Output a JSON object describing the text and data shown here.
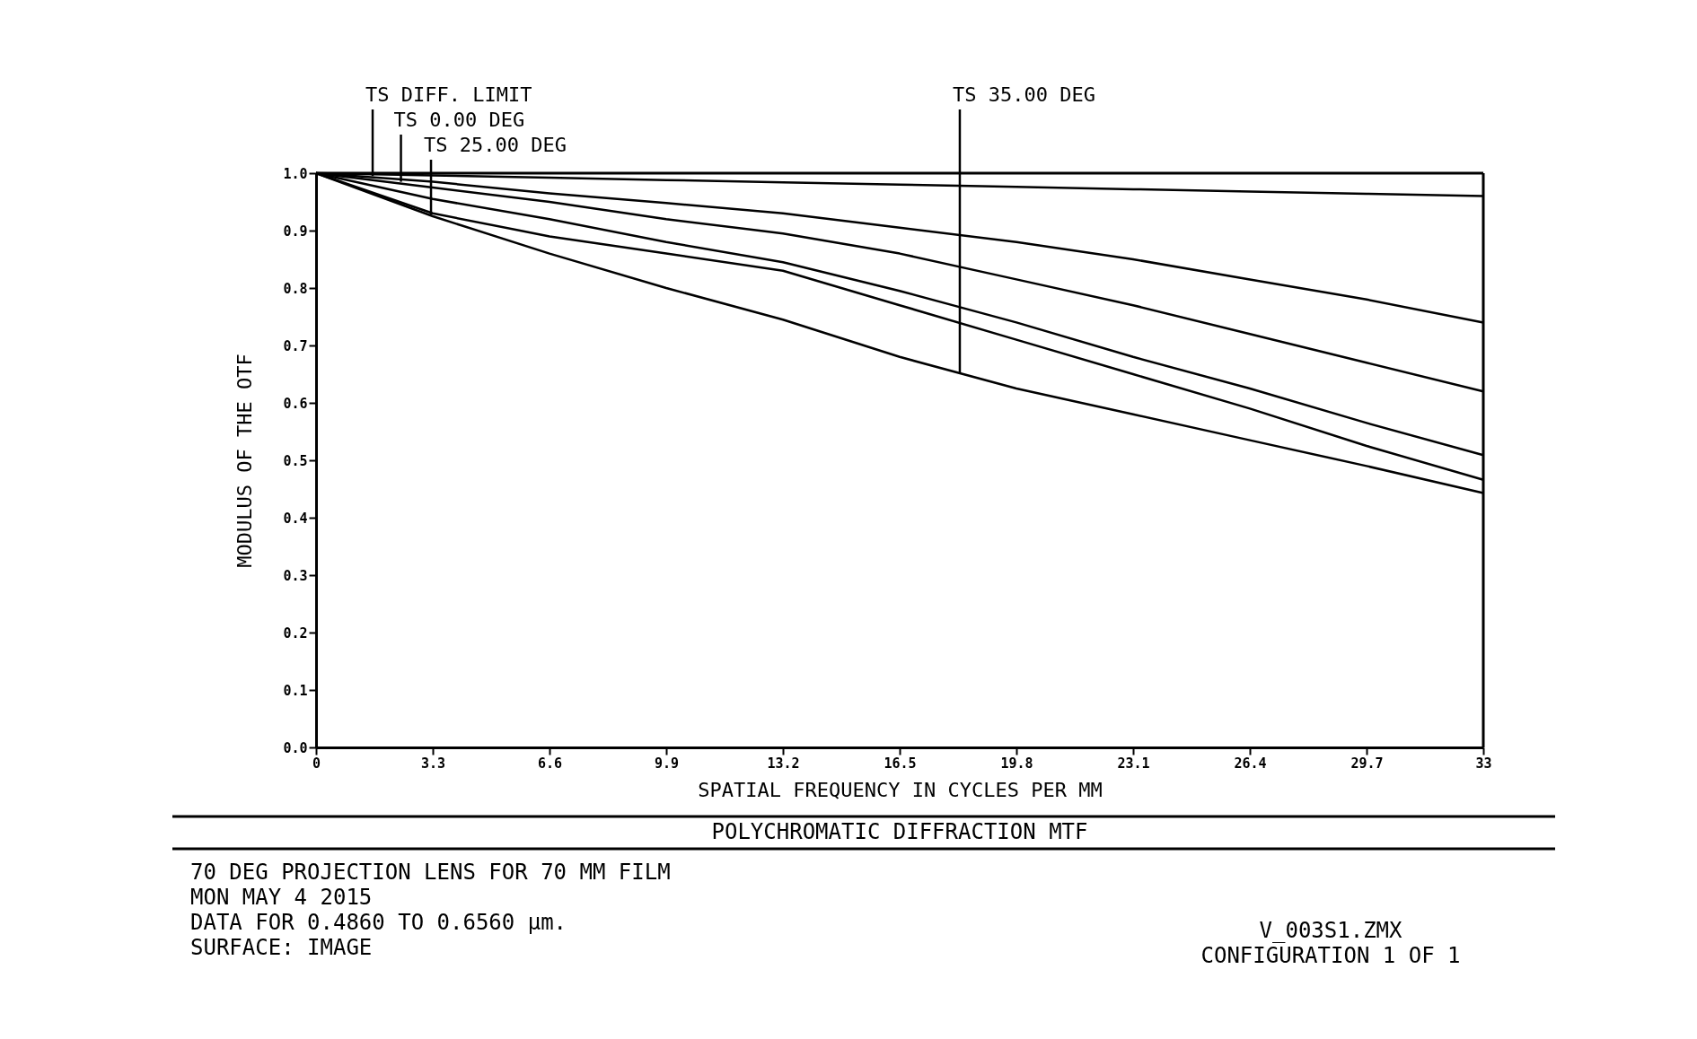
{
  "chart_data": {
    "type": "line",
    "title": "POLYCHROMATIC DIFFRACTION MTF",
    "xlabel": "SPATIAL FREQUENCY IN CYCLES PER MM",
    "ylabel": "MODULUS OF THE OTF",
    "x": [
      0,
      3.3,
      6.6,
      9.9,
      13.2,
      16.5,
      19.8,
      23.1,
      26.4,
      29.7,
      33
    ],
    "series": [
      {
        "color": "#000000",
        "values": [
          1.0,
          0.996,
          0.992,
          0.988,
          0.984,
          0.98,
          0.976,
          0.972,
          0.968,
          0.964,
          0.96
        ]
      },
      {
        "color": "#000000",
        "values": [
          1.0,
          0.985,
          0.965,
          0.948,
          0.93,
          0.905,
          0.88,
          0.85,
          0.815,
          0.78,
          0.74
        ]
      },
      {
        "color": "#000000",
        "values": [
          1.0,
          0.975,
          0.95,
          0.92,
          0.895,
          0.86,
          0.815,
          0.77,
          0.72,
          0.67,
          0.62
        ]
      },
      {
        "color": "#000000",
        "values": [
          1.0,
          0.955,
          0.92,
          0.88,
          0.845,
          0.795,
          0.74,
          0.68,
          0.625,
          0.565,
          0.509
        ]
      },
      {
        "color": "#000000",
        "values": [
          1.0,
          0.93,
          0.89,
          0.86,
          0.83,
          0.77,
          0.71,
          0.65,
          0.59,
          0.525,
          0.466
        ]
      },
      {
        "color": "#000000",
        "values": [
          1.0,
          0.925,
          0.86,
          0.8,
          0.745,
          0.68,
          0.625,
          0.58,
          0.535,
          0.49,
          0.443
        ]
      }
    ],
    "xlim": [
      0,
      33
    ],
    "ylim": [
      0,
      1
    ],
    "xticks": [
      0,
      3.3,
      6.6,
      9.9,
      13.2,
      16.5,
      19.8,
      23.1,
      26.4,
      29.7,
      33
    ],
    "yticks": [
      {
        "value": 0,
        "label": "0.0"
      },
      0.1,
      0.2,
      0.3,
      0.4,
      0.5,
      0.6,
      0.7,
      0.8,
      0.9,
      {
        "value": 1,
        "label": "1.0"
      }
    ],
    "grid": false,
    "legend": false,
    "marker": "none",
    "line_style": "solid",
    "annotations": [
      {
        "text": "TS DIFF. LIMIT",
        "x": 1.6,
        "y": 0.995
      },
      {
        "text": "TS 0.00 DEG",
        "x": 2.4,
        "y": 0.985
      },
      {
        "text": "TS 25.00 DEG",
        "x": 3.25,
        "y": 0.928
      },
      {
        "text": "TS 35.00 DEG",
        "x": 18.2,
        "y": 0.652
      },
      "70 DEG PROJECTION LENS FOR 70 MM FILM",
      "MON MAY 4 2015",
      "DATA FOR 0.4860 TO 0.6560 µm.",
      "SURFACE: IMAGE",
      "V_003S1.ZMX",
      "CONFIGURATION 1 OF 1"
    ]
  }
}
